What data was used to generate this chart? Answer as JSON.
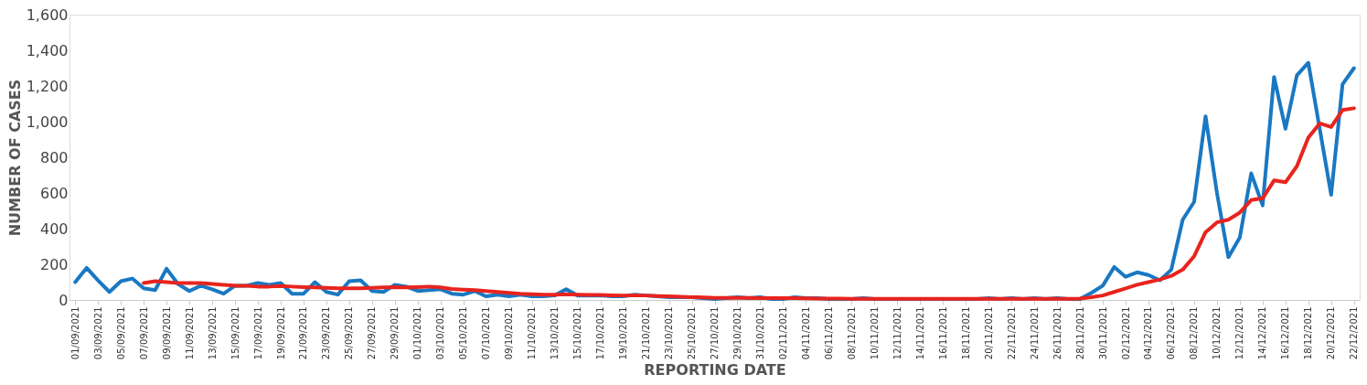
{
  "chart_data": {
    "type": "line",
    "xlabel": "REPORTING DATE",
    "ylabel": "NUMBER OF CASES",
    "categories": [
      "01/09/2021",
      null,
      "03/09/2021",
      null,
      "05/09/2021",
      null,
      "07/09/2021",
      null,
      "09/09/2021",
      null,
      "11/09/2021",
      null,
      "13/09/2021",
      null,
      "15/09/2021",
      null,
      "17/09/2021",
      null,
      "19/09/2021",
      null,
      "21/09/2021",
      null,
      "23/09/2021",
      null,
      "25/09/2021",
      null,
      "27/09/2021",
      null,
      "29/09/2021",
      null,
      "01/10/2021",
      null,
      "03/10/2021",
      null,
      "05/10/2021",
      null,
      "07/10/2021",
      null,
      "09/10/2021",
      null,
      "11/10/2021",
      null,
      "13/10/2021",
      null,
      "15/10/2021",
      null,
      "17/10/2021",
      null,
      "19/10/2021",
      null,
      "21/10/2021",
      null,
      "23/10/2021",
      null,
      "25/10/2021",
      null,
      "27/10/2021",
      null,
      "29/10/2021",
      null,
      "31/10/2021",
      null,
      "02/11/2021",
      null,
      "04/11/2021",
      null,
      "06/11/2021",
      null,
      "08/11/2021",
      null,
      "10/11/2021",
      null,
      "12/11/2021",
      null,
      "14/11/2021",
      null,
      "16/11/2021",
      null,
      "18/11/2021",
      null,
      "20/11/2021",
      null,
      "22/11/2021",
      null,
      "24/11/2021",
      null,
      "26/11/2021",
      null,
      "28/11/2021",
      null,
      "30/11/2021",
      null,
      "02/12/2021",
      null,
      "04/12/2021",
      null,
      "06/12/2021",
      null,
      "08/12/2021",
      null,
      "10/12/2021",
      null,
      "12/12/2021",
      null,
      "14/12/2021",
      null,
      "16/12/2021",
      null,
      "18/12/2021",
      null,
      "20/12/2021",
      null,
      "22/12/2021"
    ],
    "series": [
      {
        "color": "#1a78c2",
        "values": [
          100,
          180,
          110,
          45,
          105,
          120,
          65,
          55,
          175,
          90,
          50,
          80,
          60,
          35,
          80,
          80,
          95,
          85,
          95,
          35,
          35,
          100,
          45,
          30,
          105,
          110,
          50,
          45,
          85,
          75,
          50,
          55,
          60,
          35,
          30,
          50,
          20,
          30,
          20,
          30,
          20,
          20,
          25,
          60,
          25,
          25,
          25,
          20,
          20,
          30,
          25,
          20,
          15,
          15,
          15,
          10,
          5,
          10,
          15,
          10,
          15,
          5,
          5,
          15,
          10,
          10,
          5,
          5,
          5,
          10,
          5,
          5,
          5,
          5,
          5,
          5,
          5,
          5,
          5,
          5,
          10,
          5,
          10,
          5,
          10,
          5,
          10,
          5,
          5,
          40,
          80,
          185,
          130,
          155,
          140,
          110,
          170,
          450,
          550,
          1030,
          600,
          240,
          350,
          710,
          530,
          1250,
          960,
          1260,
          1330,
          960,
          590,
          1210,
          1300
        ]
      },
      {
        "color": "#e8241e",
        "values": [
          null,
          null,
          null,
          null,
          null,
          null,
          95,
          105,
          100,
          95,
          95,
          95,
          90,
          85,
          80,
          80,
          75,
          75,
          78,
          75,
          72,
          70,
          68,
          65,
          65,
          65,
          68,
          70,
          72,
          70,
          72,
          75,
          70,
          62,
          58,
          55,
          50,
          45,
          40,
          35,
          32,
          30,
          30,
          32,
          30,
          28,
          28,
          26,
          25,
          26,
          25,
          22,
          20,
          18,
          16,
          14,
          12,
          12,
          12,
          11,
          10,
          10,
          10,
          10,
          9,
          8,
          8,
          8,
          7,
          7,
          7,
          7,
          7,
          7,
          6,
          6,
          6,
          6,
          6,
          7,
          7,
          7,
          7,
          7,
          7,
          7,
          7,
          7,
          8,
          15,
          25,
          45,
          65,
          85,
          100,
          115,
          135,
          170,
          245,
          380,
          435,
          450,
          490,
          560,
          570,
          670,
          660,
          750,
          910,
          990,
          970,
          1065,
          1075
        ]
      }
    ],
    "ylim": [
      0,
      1600
    ],
    "yticks": [
      0,
      200,
      400,
      600,
      800,
      {
        "value": 1000,
        "label": "1,000"
      },
      {
        "value": 1200,
        "label": "1,200"
      },
      {
        "value": 1400,
        "label": "1,400"
      },
      {
        "value": 1600,
        "label": "1,600"
      }
    ],
    "grid": false,
    "line_style": "solid",
    "marker": "none"
  }
}
